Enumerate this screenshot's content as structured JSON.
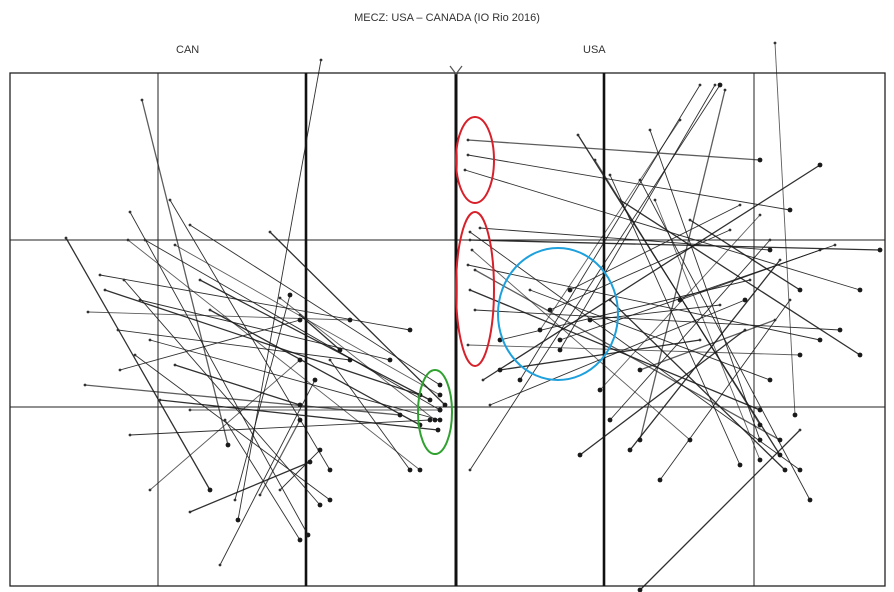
{
  "title": "MECZ: USA – CANADA (IO Rio 2016)",
  "team_left": "CAN",
  "team_right": "USA",
  "colors": {
    "line": "#1a1a1a",
    "grid": "#222222",
    "marker_red": "#d8202a",
    "marker_green": "#2fa12f",
    "marker_blue": "#1ea0dc"
  }
}
